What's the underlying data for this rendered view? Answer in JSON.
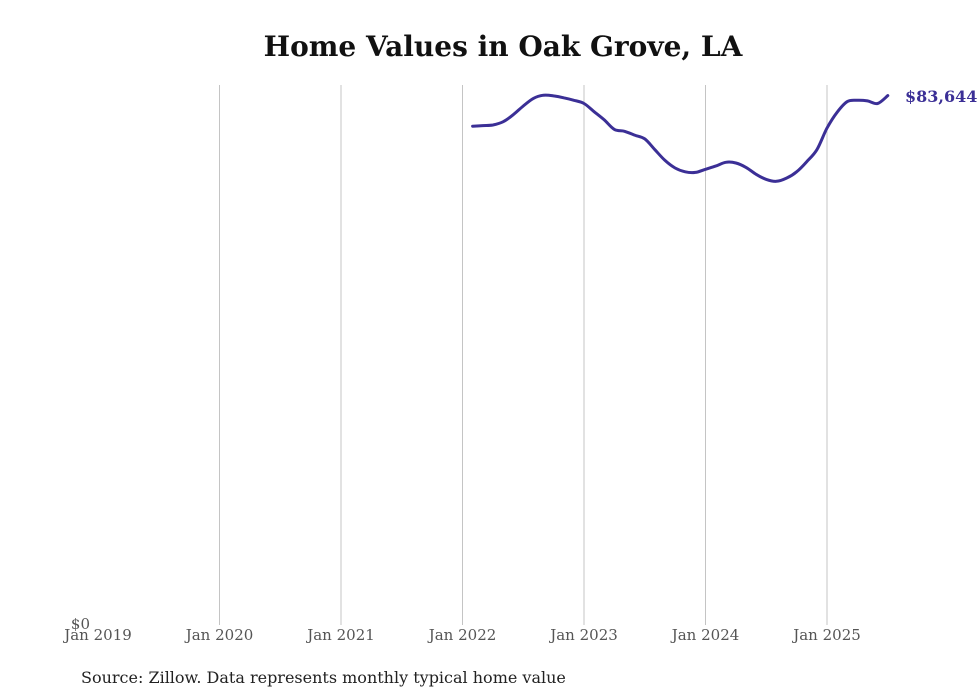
{
  "chart_data": {
    "type": "line",
    "title": "Home Values in Oak Grove, LA",
    "xlabel": "",
    "ylabel": "",
    "x_ticks": [
      "Jan 2019",
      "Jan 2020",
      "Jan 2021",
      "Jan 2022",
      "Jan 2023",
      "Jan 2024",
      "Jan 2025"
    ],
    "y_ticks": [
      "$0"
    ],
    "xlim": [
      "2019-01",
      "2025-10"
    ],
    "ylim": [
      0,
      85000
    ],
    "grid": "vertical",
    "series": [
      {
        "color": "#3b2f96",
        "x": [
          "2022-02",
          "2022-03",
          "2022-04",
          "2022-05",
          "2022-06",
          "2022-07",
          "2022-08",
          "2022-09",
          "2022-10",
          "2022-11",
          "2022-12",
          "2023-01",
          "2023-02",
          "2023-03",
          "2023-04",
          "2023-05",
          "2023-06",
          "2023-07",
          "2023-08",
          "2023-09",
          "2023-10",
          "2023-11",
          "2023-12",
          "2024-01",
          "2024-02",
          "2024-03",
          "2024-04",
          "2024-05",
          "2024-06",
          "2024-07",
          "2024-08",
          "2024-09",
          "2024-10",
          "2024-11",
          "2024-12",
          "2025-01",
          "2025-02",
          "2025-03",
          "2025-04",
          "2025-05",
          "2025-06",
          "2025-07"
        ],
        "values": [
          78800,
          78900,
          79000,
          79500,
          80600,
          82000,
          83200,
          83700,
          83600,
          83300,
          82900,
          82400,
          81100,
          79800,
          78300,
          78000,
          77400,
          76800,
          75100,
          73400,
          72200,
          71600,
          71500,
          72000,
          72500,
          73100,
          73000,
          72300,
          71200,
          70400,
          70100,
          70600,
          71600,
          73200,
          75100,
          78500,
          81000,
          82700,
          82900,
          82800,
          82400,
          83644
        ]
      }
    ],
    "end_label": "$83,644"
  },
  "source": "Source: Zillow. Data represents monthly typical home value"
}
